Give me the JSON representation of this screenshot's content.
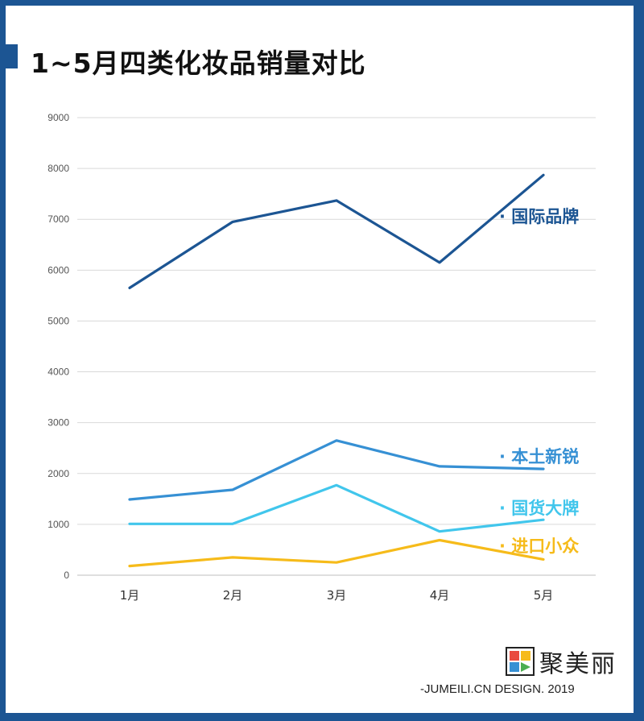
{
  "title": "1~5月四类化妆品销量对比",
  "brand_name": "聚美丽",
  "footer": "-JUMEILI.CN DESIGN. 2019",
  "chart_data": {
    "type": "line",
    "title": "1~5月四类化妆品销量对比",
    "categories": [
      "1月",
      "2月",
      "3月",
      "4月",
      "5月"
    ],
    "ylim": [
      0,
      9000
    ],
    "yticks": [
      0,
      1000,
      2000,
      3000,
      4000,
      5000,
      6000,
      7000,
      8000,
      9000
    ],
    "grid": true,
    "series": [
      {
        "name": "国际品牌",
        "label": "· 国际品牌",
        "color": "#1c5593",
        "values": [
          5650,
          6950,
          7370,
          6150,
          7870
        ]
      },
      {
        "name": "本土新锐",
        "label": "· 本土新锐",
        "color": "#3690d4",
        "values": [
          1490,
          1680,
          2650,
          2140,
          2090
        ]
      },
      {
        "name": "国货大牌",
        "label": "· 国货大牌",
        "color": "#41c6ec",
        "values": [
          1010,
          1010,
          1770,
          860,
          1090
        ]
      },
      {
        "name": "进口小众",
        "label": "· 进口小众",
        "color": "#f6bb1a",
        "values": [
          180,
          350,
          250,
          690,
          310
        ]
      }
    ]
  }
}
